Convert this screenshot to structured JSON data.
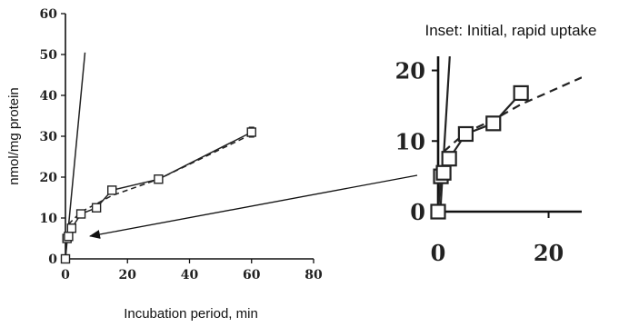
{
  "chart_data": [
    {
      "type": "line",
      "panel": "main",
      "xlabel": "Incubation period, min",
      "ylabel": "nmol/mg protein",
      "xlim": [
        0,
        80
      ],
      "ylim": [
        0,
        60
      ],
      "xticks": [
        0,
        20,
        40,
        60,
        80
      ],
      "yticks": [
        0,
        10,
        20,
        30,
        40,
        50,
        60
      ],
      "grid": false,
      "series": [
        {
          "style": "solid-with-square-markers",
          "x": [
            0,
            0.5,
            1,
            2,
            5,
            10,
            15,
            30,
            60
          ],
          "y": [
            0,
            5,
            5.5,
            7.5,
            11,
            12.5,
            16.8,
            19.5,
            31
          ]
        },
        {
          "style": "dashed-fit",
          "x": [
            1,
            5,
            15,
            30,
            60
          ],
          "y": [
            8.5,
            11.5,
            15.5,
            19.5,
            30.5
          ]
        },
        {
          "style": "steep-initial-line",
          "x": [
            0,
            6.3
          ],
          "y": [
            0,
            50.5
          ]
        }
      ],
      "error_bars": [
        {
          "x": 60,
          "y": 31,
          "err": 1.2
        }
      ]
    },
    {
      "type": "line",
      "panel": "inset",
      "title": "Inset: Initial, rapid uptake",
      "xlim": [
        0,
        26
      ],
      "ylim": [
        0,
        22
      ],
      "xticks": [
        0,
        20
      ],
      "yticks": [
        0,
        10,
        20
      ],
      "grid": false,
      "series": [
        {
          "style": "solid-with-square-markers",
          "x": [
            0,
            0.5,
            1,
            2,
            5,
            10,
            15
          ],
          "y": [
            0,
            5,
            5.5,
            7.5,
            11,
            12.5,
            16.8
          ]
        },
        {
          "style": "dashed-fit",
          "x": [
            1,
            5,
            10,
            15,
            26
          ],
          "y": [
            8.5,
            11.2,
            13,
            15.2,
            19
          ]
        },
        {
          "style": "steep-initial-line",
          "x": [
            0.4,
            2.1
          ],
          "y": [
            0,
            22
          ]
        }
      ]
    }
  ]
}
